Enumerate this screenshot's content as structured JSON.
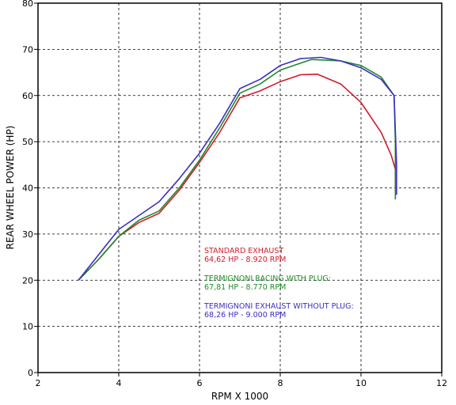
{
  "chart_data": {
    "type": "line",
    "xlabel": "RPM X 1000",
    "ylabel": "REAR WHEEL POWER (HP)",
    "xlim": [
      2,
      12
    ],
    "ylim": [
      0,
      80
    ],
    "xticks": [
      2,
      4,
      6,
      8,
      10,
      12
    ],
    "yticks": [
      0,
      10,
      20,
      30,
      40,
      50,
      60,
      70,
      80
    ],
    "grid": true,
    "series": [
      {
        "name": "STANDARD EXHAUST",
        "color": "#d01c2a",
        "x": [
          3.0,
          3.5,
          4.0,
          4.5,
          5.0,
          5.5,
          6.0,
          6.5,
          7.0,
          7.5,
          8.0,
          8.5,
          8.92,
          9.5,
          10.0,
          10.5,
          10.75,
          10.85,
          10.85
        ],
        "y": [
          20.0,
          24.5,
          29.5,
          32.5,
          34.5,
          39.5,
          45.5,
          52.0,
          59.5,
          61.0,
          63.0,
          64.5,
          64.62,
          62.5,
          58.5,
          52.0,
          47.0,
          44.0,
          40.0
        ]
      },
      {
        "name": "TERMIGNONI RACING WITH PLUG",
        "color": "#1f8a2a",
        "x": [
          3.0,
          3.5,
          4.0,
          4.5,
          5.0,
          5.5,
          6.0,
          6.5,
          7.0,
          7.5,
          8.0,
          8.5,
          8.77,
          9.5,
          10.0,
          10.5,
          10.82,
          10.85,
          10.85
        ],
        "y": [
          20.0,
          24.5,
          29.5,
          33.0,
          35.0,
          40.0,
          46.0,
          53.0,
          60.5,
          62.5,
          65.5,
          67.0,
          67.81,
          67.5,
          66.5,
          64.0,
          60.0,
          50.0,
          37.5
        ]
      },
      {
        "name": "TERMIGNONI EXHAUST WITHOUT PLUG",
        "color": "#3a2fc4",
        "x": [
          3.0,
          3.5,
          4.0,
          4.5,
          5.0,
          5.5,
          6.0,
          6.5,
          7.0,
          7.5,
          8.0,
          8.5,
          9.0,
          9.5,
          10.0,
          10.5,
          10.82,
          10.88,
          10.88
        ],
        "y": [
          20.0,
          25.5,
          31.0,
          34.0,
          37.0,
          42.0,
          47.5,
          54.0,
          61.5,
          63.5,
          66.5,
          68.0,
          68.26,
          67.5,
          66.0,
          63.5,
          60.0,
          45.0,
          38.5
        ]
      }
    ],
    "annotations": [
      {
        "line1": "STANDARD EXHAUST",
        "line2": "64,62 HP - 8.920 RPM",
        "color": "#d01c2a"
      },
      {
        "line1": "TERMIGNONI RACING WITH PLUG:",
        "line2": "67,81 HP - 8.770 RPM",
        "color": "#1f8a2a"
      },
      {
        "line1": "TERMIGNONI EXHAUST WITHOUT PLUG:",
        "line2": "68,26 HP - 9.000 RPM",
        "color": "#3a2fc4"
      }
    ]
  }
}
